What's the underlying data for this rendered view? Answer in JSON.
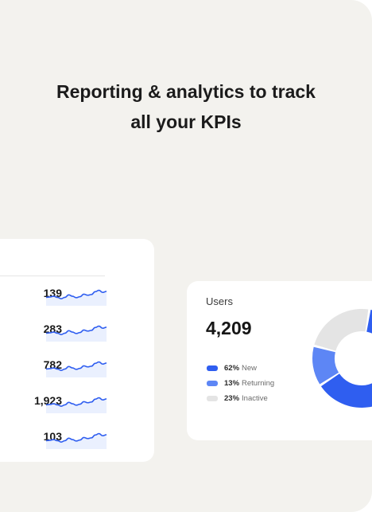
{
  "headline": {
    "line1": "Reporting & analytics to track",
    "line2": "all your KPIs"
  },
  "metrics": [
    {
      "value": "139"
    },
    {
      "value": "283"
    },
    {
      "value": "782"
    },
    {
      "value": "1,923"
    },
    {
      "value": "103"
    }
  ],
  "users_card": {
    "title": "Users",
    "total": "4,209",
    "segments": [
      {
        "pct": "62%",
        "label": "New",
        "share": 62,
        "color": "#2f5ef0"
      },
      {
        "pct": "13%",
        "label": "Returning",
        "share": 13,
        "color": "#5d86f5"
      },
      {
        "pct": "23%",
        "label": "Inactive",
        "share": 23,
        "color": "#e4e4e4"
      }
    ]
  },
  "colors": {
    "accent": "#2f5ef0",
    "background": "#f3f2ee",
    "card": "#ffffff"
  }
}
